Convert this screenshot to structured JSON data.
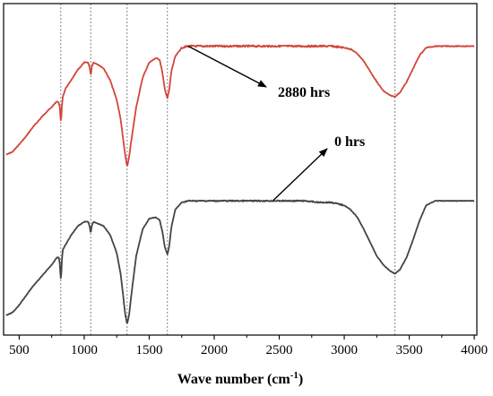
{
  "chart_data": {
    "type": "line",
    "title": "",
    "xlabel": "Wave number (cm",
    "xlabel_superscript": "-1",
    "xlabel_suffix": ")",
    "ylabel": "",
    "xlim": [
      380,
      4020
    ],
    "xticks": [
      500,
      1000,
      1500,
      2000,
      2500,
      3000,
      3500,
      4000
    ],
    "xtick_labels": [
      "500",
      "1000",
      "1500",
      "2000",
      "2500",
      "3000",
      "3500",
      "4000"
    ],
    "y_axis_visible": false,
    "grid": false,
    "reference_lines_x": [
      820,
      1050,
      1330,
      1640,
      3390
    ],
    "series": [
      {
        "name": "2880 hrs",
        "color": "#d2463a",
        "points": [
          [
            400,
            0.08
          ],
          [
            450,
            0.1
          ],
          [
            500,
            0.15
          ],
          [
            550,
            0.2
          ],
          [
            600,
            0.26
          ],
          [
            650,
            0.31
          ],
          [
            700,
            0.36
          ],
          [
            750,
            0.4
          ],
          [
            790,
            0.44
          ],
          [
            805,
            0.43
          ],
          [
            812,
            0.4
          ],
          [
            818,
            0.32
          ],
          [
            822,
            0.3
          ],
          [
            828,
            0.4
          ],
          [
            835,
            0.47
          ],
          [
            860,
            0.53
          ],
          [
            900,
            0.58
          ],
          [
            950,
            0.65
          ],
          [
            1000,
            0.7
          ],
          [
            1030,
            0.7
          ],
          [
            1042,
            0.67
          ],
          [
            1050,
            0.61
          ],
          [
            1058,
            0.67
          ],
          [
            1070,
            0.7
          ],
          [
            1100,
            0.69
          ],
          [
            1150,
            0.66
          ],
          [
            1200,
            0.58
          ],
          [
            1250,
            0.45
          ],
          [
            1280,
            0.32
          ],
          [
            1300,
            0.18
          ],
          [
            1315,
            0.08
          ],
          [
            1330,
            0.0
          ],
          [
            1345,
            0.06
          ],
          [
            1360,
            0.16
          ],
          [
            1400,
            0.4
          ],
          [
            1450,
            0.6
          ],
          [
            1500,
            0.7
          ],
          [
            1550,
            0.73
          ],
          [
            1580,
            0.72
          ],
          [
            1600,
            0.64
          ],
          [
            1620,
            0.52
          ],
          [
            1640,
            0.46
          ],
          [
            1655,
            0.52
          ],
          [
            1670,
            0.64
          ],
          [
            1700,
            0.74
          ],
          [
            1750,
            0.8
          ],
          [
            1800,
            0.81
          ],
          [
            1900,
            0.81
          ],
          [
            2000,
            0.81
          ],
          [
            2100,
            0.81
          ],
          [
            2200,
            0.81
          ],
          [
            2300,
            0.81
          ],
          [
            2400,
            0.81
          ],
          [
            2500,
            0.81
          ],
          [
            2600,
            0.81
          ],
          [
            2700,
            0.81
          ],
          [
            2800,
            0.81
          ],
          [
            2900,
            0.81
          ],
          [
            3000,
            0.8
          ],
          [
            3050,
            0.79
          ],
          [
            3100,
            0.76
          ],
          [
            3150,
            0.71
          ],
          [
            3200,
            0.64
          ],
          [
            3250,
            0.57
          ],
          [
            3300,
            0.51
          ],
          [
            3350,
            0.48
          ],
          [
            3390,
            0.47
          ],
          [
            3430,
            0.5
          ],
          [
            3480,
            0.57
          ],
          [
            3530,
            0.66
          ],
          [
            3580,
            0.75
          ],
          [
            3630,
            0.8
          ],
          [
            3700,
            0.81
          ],
          [
            3800,
            0.81
          ],
          [
            3900,
            0.81
          ],
          [
            4000,
            0.81
          ]
        ]
      },
      {
        "name": "0 hrs",
        "color": "#444444",
        "points": [
          [
            400,
            0.06
          ],
          [
            450,
            0.08
          ],
          [
            500,
            0.13
          ],
          [
            550,
            0.19
          ],
          [
            600,
            0.25
          ],
          [
            650,
            0.3
          ],
          [
            700,
            0.35
          ],
          [
            750,
            0.4
          ],
          [
            790,
            0.45
          ],
          [
            805,
            0.45
          ],
          [
            812,
            0.41
          ],
          [
            818,
            0.32
          ],
          [
            822,
            0.3
          ],
          [
            828,
            0.42
          ],
          [
            835,
            0.5
          ],
          [
            860,
            0.54
          ],
          [
            900,
            0.6
          ],
          [
            950,
            0.66
          ],
          [
            1000,
            0.69
          ],
          [
            1030,
            0.69
          ],
          [
            1042,
            0.66
          ],
          [
            1050,
            0.61
          ],
          [
            1058,
            0.66
          ],
          [
            1070,
            0.69
          ],
          [
            1100,
            0.68
          ],
          [
            1150,
            0.66
          ],
          [
            1200,
            0.6
          ],
          [
            1250,
            0.48
          ],
          [
            1280,
            0.34
          ],
          [
            1300,
            0.19
          ],
          [
            1315,
            0.07
          ],
          [
            1330,
            0.0
          ],
          [
            1345,
            0.06
          ],
          [
            1360,
            0.18
          ],
          [
            1400,
            0.46
          ],
          [
            1450,
            0.64
          ],
          [
            1500,
            0.71
          ],
          [
            1550,
            0.72
          ],
          [
            1580,
            0.7
          ],
          [
            1600,
            0.63
          ],
          [
            1620,
            0.52
          ],
          [
            1640,
            0.47
          ],
          [
            1655,
            0.53
          ],
          [
            1670,
            0.65
          ],
          [
            1700,
            0.77
          ],
          [
            1750,
            0.82
          ],
          [
            1800,
            0.83
          ],
          [
            1900,
            0.83
          ],
          [
            2000,
            0.83
          ],
          [
            2100,
            0.83
          ],
          [
            2200,
            0.83
          ],
          [
            2300,
            0.83
          ],
          [
            2400,
            0.83
          ],
          [
            2500,
            0.83
          ],
          [
            2600,
            0.83
          ],
          [
            2700,
            0.83
          ],
          [
            2800,
            0.82
          ],
          [
            2900,
            0.82
          ],
          [
            3000,
            0.8
          ],
          [
            3050,
            0.77
          ],
          [
            3100,
            0.72
          ],
          [
            3150,
            0.64
          ],
          [
            3200,
            0.55
          ],
          [
            3250,
            0.46
          ],
          [
            3300,
            0.4
          ],
          [
            3350,
            0.36
          ],
          [
            3390,
            0.34
          ],
          [
            3430,
            0.37
          ],
          [
            3480,
            0.45
          ],
          [
            3530,
            0.57
          ],
          [
            3580,
            0.7
          ],
          [
            3630,
            0.8
          ],
          [
            3700,
            0.83
          ],
          [
            3800,
            0.83
          ],
          [
            3900,
            0.83
          ],
          [
            4000,
            0.83
          ]
        ]
      }
    ],
    "annotations": [
      {
        "text": "2880 hrs",
        "series": 0,
        "arrow_from_x": 1800
      },
      {
        "text": "0 hrs",
        "series": 1,
        "arrow_from_x": 2450
      }
    ]
  }
}
